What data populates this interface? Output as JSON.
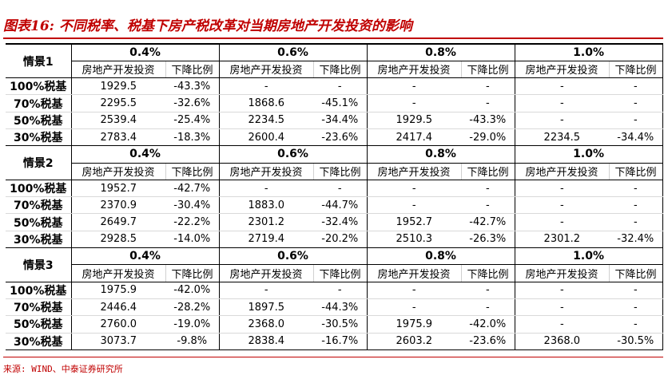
{
  "title": "图表16: 不同税率、税基下房产税改革对当期房地产开发投资的影响",
  "source": "来源: WIND、中泰证券研究所",
  "rates": [
    "0.4%",
    "0.6%",
    "0.8%",
    "1.0%"
  ],
  "sub_headers": [
    "房地产开发投资",
    "下降比例"
  ],
  "scenarios": [
    {
      "name": "情景1",
      "rows": [
        {
          "label": "100%税基",
          "cells": [
            "1929.5",
            "-43.3%",
            "-",
            "-",
            "-",
            "-",
            "-",
            "-"
          ]
        },
        {
          "label": "70%税基",
          "cells": [
            "2295.5",
            "-32.6%",
            "1868.6",
            "-45.1%",
            "-",
            "-",
            "-",
            "-"
          ]
        },
        {
          "label": "50%税基",
          "cells": [
            "2539.4",
            "-25.4%",
            "2234.5",
            "-34.4%",
            "1929.5",
            "-43.3%",
            "-",
            "-"
          ]
        },
        {
          "label": "30%税基",
          "cells": [
            "2783.4",
            "-18.3%",
            "2600.4",
            "-23.6%",
            "2417.4",
            "-29.0%",
            "2234.5",
            "-34.4%"
          ]
        }
      ]
    },
    {
      "name": "情景2",
      "rows": [
        {
          "label": "100%税基",
          "cells": [
            "1952.7",
            "-42.7%",
            "-",
            "-",
            "-",
            "-",
            "-",
            "-"
          ]
        },
        {
          "label": "70%税基",
          "cells": [
            "2370.9",
            "-30.4%",
            "1883.0",
            "-44.7%",
            "-",
            "-",
            "-",
            "-"
          ]
        },
        {
          "label": "50%税基",
          "cells": [
            "2649.7",
            "-22.2%",
            "2301.2",
            "-32.4%",
            "1952.7",
            "-42.7%",
            "-",
            "-"
          ]
        },
        {
          "label": "30%税基",
          "cells": [
            "2928.5",
            "-14.0%",
            "2719.4",
            "-20.2%",
            "2510.3",
            "-26.3%",
            "2301.2",
            "-32.4%"
          ]
        }
      ]
    },
    {
      "name": "情景3",
      "rows": [
        {
          "label": "100%税基",
          "cells": [
            "1975.9",
            "-42.0%",
            "-",
            "-",
            "-",
            "-",
            "-",
            "-"
          ]
        },
        {
          "label": "70%税基",
          "cells": [
            "2446.4",
            "-28.2%",
            "1897.5",
            "-44.3%",
            "-",
            "-",
            "-",
            "-"
          ]
        },
        {
          "label": "50%税基",
          "cells": [
            "2760.0",
            "-19.0%",
            "2368.0",
            "-30.5%",
            "1975.9",
            "-42.0%",
            "-",
            "-"
          ]
        },
        {
          "label": "30%税基",
          "cells": [
            "3073.7",
            "-9.8%",
            "2838.4",
            "-16.7%",
            "2603.2",
            "-23.6%",
            "2368.0",
            "-30.5%"
          ]
        }
      ]
    }
  ]
}
